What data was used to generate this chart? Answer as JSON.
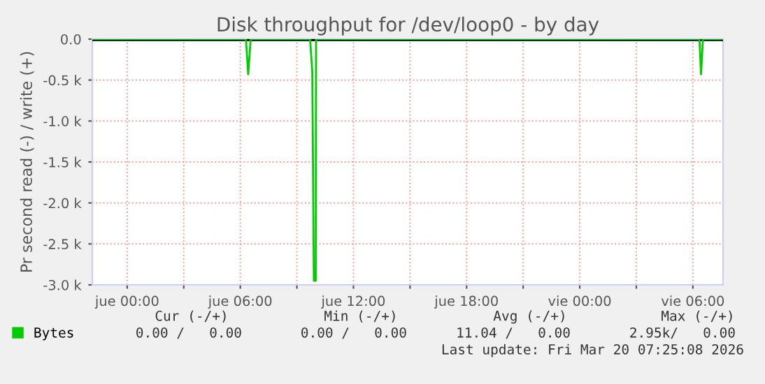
{
  "chart_data": {
    "type": "line",
    "title": "Disk throughput for /dev/loop0 - by day",
    "ylabel": "Pr second read (-) / write (+)",
    "series": [
      {
        "name": "Bytes",
        "color": "#00cc00",
        "x": [
          "2026-03-18T22:09",
          "2026-03-19T06:18",
          "2026-03-19T06:25",
          "2026-03-19T06:33",
          "2026-03-19T09:42",
          "2026-03-19T09:49",
          "2026-03-19T09:54",
          "2026-03-19T10:00",
          "2026-03-19T10:01",
          "2026-03-20T06:21",
          "2026-03-20T06:26",
          "2026-03-20T06:32",
          "2026-03-20T07:36"
        ],
        "values": [
          0,
          0,
          -430,
          0,
          0,
          -400,
          -2950,
          -2950,
          0,
          0,
          -430,
          0,
          0
        ]
      }
    ],
    "xlim": [
      "2026-03-18T22:09",
      "2026-03-20T07:36"
    ],
    "xticks": [
      {
        "value": "2026-03-19T00:00",
        "label": "jue 00:00"
      },
      {
        "value": "2026-03-19T03:00",
        "label": null
      },
      {
        "value": "2026-03-19T06:00",
        "label": "jue 06:00"
      },
      {
        "value": "2026-03-19T09:00",
        "label": null
      },
      {
        "value": "2026-03-19T12:00",
        "label": "jue 12:00"
      },
      {
        "value": "2026-03-19T15:00",
        "label": null
      },
      {
        "value": "2026-03-19T18:00",
        "label": "jue 18:00"
      },
      {
        "value": "2026-03-19T21:00",
        "label": null
      },
      {
        "value": "2026-03-20T00:00",
        "label": "vie 00:00"
      },
      {
        "value": "2026-03-20T03:00",
        "label": null
      },
      {
        "value": "2026-03-20T06:00",
        "label": "vie 06:00"
      }
    ],
    "ylim": [
      -3000,
      0
    ],
    "yticks": [
      {
        "value": -3000,
        "label": "-3.0 k"
      },
      {
        "value": -2500,
        "label": "-2.5 k"
      },
      {
        "value": -2000,
        "label": "-2.0 k"
      },
      {
        "value": -1500,
        "label": "-1.5 k"
      },
      {
        "value": -1000,
        "label": "-1.0 k"
      },
      {
        "value": -500,
        "label": "-0.5 k"
      },
      {
        "value": 0,
        "label": "0.0"
      }
    ],
    "ref_lines": [
      {
        "axis": "y",
        "value": 0,
        "color": "#000000"
      }
    ],
    "grid": true,
    "legend": "bottom left",
    "line_style": "solid",
    "marker": "none",
    "annotations": [
      "Cur (-/+)",
      "Min (-/+)",
      "Avg (-/+)",
      "Max (-/+)",
      "0.00 /   0.00",
      "0.00 /   0.00",
      "11.04 /   0.00",
      "2.95k/   0.00",
      "Last update: Fri Mar 20 07:25:08 2026"
    ]
  }
}
